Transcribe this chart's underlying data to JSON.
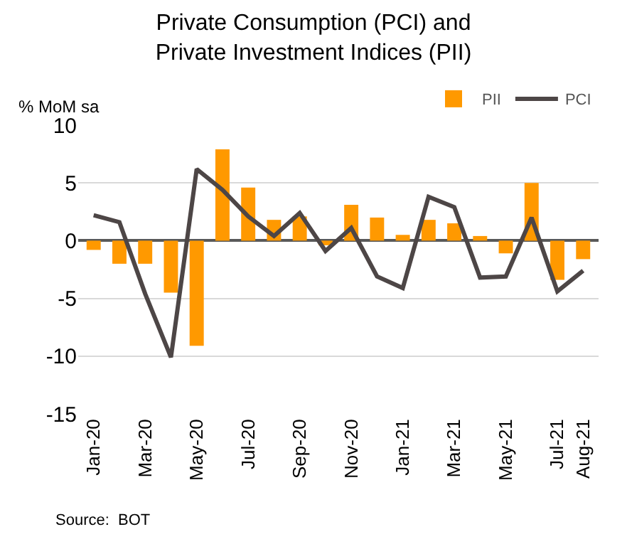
{
  "chart_data": {
    "type": "bar",
    "title": "Private Consumption (PCI) and Private Investment Indices (PII)",
    "ylabel": "% MoM sa",
    "categories": [
      "Jan-20",
      null,
      "Mar-20",
      null,
      "May-20",
      null,
      "Jul-20",
      null,
      "Sep-20",
      null,
      "Nov-20",
      null,
      "Jan-21",
      null,
      "Mar-21",
      null,
      "May-21",
      null,
      "Jul-21",
      "Aug-21"
    ],
    "series": [
      {
        "name": "PII",
        "color": "#ff9900",
        "values": [
          -0.8,
          -2.0,
          -2.0,
          -4.5,
          -9.1,
          7.9,
          4.6,
          1.8,
          2.1,
          -0.4,
          3.1,
          2.0,
          0.5,
          1.8,
          1.5,
          0.4,
          -1.1,
          5.0,
          -3.4,
          -1.6
        ]
      },
      {
        "name": "PCI",
        "type": "line",
        "color": "#4d4646",
        "values": [
          2.2,
          1.6,
          -4.6,
          -10.1,
          6.2,
          4.4,
          2.1,
          0.4,
          2.4,
          -0.9,
          1.1,
          -3.1,
          -4.1,
          3.8,
          2.9,
          -3.2,
          -3.1,
          2.0,
          -4.4,
          -2.6
        ]
      }
    ],
    "ylim": [
      -15,
      10
    ],
    "yticks": [
      -15,
      -10,
      -5,
      0,
      5,
      10
    ],
    "grid": "y",
    "legend": "top right",
    "marker": "none",
    "line_style": "solid",
    "annotations": [
      "Source:  BOT"
    ]
  }
}
